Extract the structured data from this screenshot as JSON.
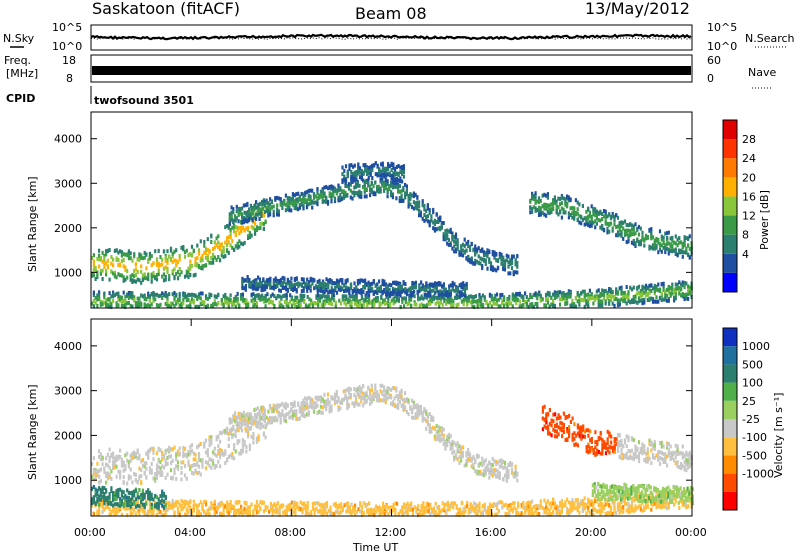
{
  "header": {
    "title": "Saskatoon (fitACF)",
    "beam": "Beam 08",
    "date": "13/May/2012"
  },
  "noise_panel": {
    "left_label": "N.Sky",
    "right_label": "N.Search",
    "ticks": [
      "10^5",
      "10^0"
    ]
  },
  "freq_panel": {
    "left_label_line1": "Freq.",
    "left_label_line2": "[MHz]",
    "left_ticks": [
      "18",
      "8"
    ],
    "right_ticks": [
      "60",
      "0"
    ],
    "right_label": "Nave"
  },
  "cpid": {
    "label": "CPID",
    "value": "twofsound 3501"
  },
  "colors": {
    "power": [
      "#0000ff",
      "#1f4fa0",
      "#2c7f6e",
      "#3a9a48",
      "#8ac63a",
      "#ffb000",
      "#ff7a00",
      "#ff3300",
      "#e00000"
    ],
    "velocity": [
      "#ff0000",
      "#ff4a00",
      "#ff8c00",
      "#ffc040",
      "#c8c8c8",
      "#9ad060",
      "#4fb04a",
      "#2c7f6e",
      "#1f6f9f",
      "#1030c0"
    ],
    "background": "#ffffff"
  },
  "chart_data": [
    {
      "type": "heatmap",
      "name": "power",
      "ylabel": "Slant Range [km]",
      "yticks": [
        "4000",
        "3000",
        "2000",
        "1000"
      ],
      "ylim": [
        200,
        4600
      ],
      "xlim": [
        "00:00",
        "24:00"
      ],
      "colorbar": {
        "label": "Power [dB]",
        "ticks": [
          "28",
          "24",
          "20",
          "16",
          "12",
          "8",
          "4"
        ],
        "range": [
          0,
          32
        ]
      },
      "bands": [
        {
          "t": [
            0,
            2,
            4,
            5,
            6,
            7
          ],
          "r": [
            1250,
            1150,
            1300,
            1600,
            2000,
            2400
          ],
          "w": 350,
          "c": 22
        },
        {
          "t": [
            5.5,
            8,
            10,
            11.5,
            12.5
          ],
          "r": [
            2300,
            2600,
            2850,
            3000,
            2800
          ],
          "w": 200,
          "c": 12
        },
        {
          "t": [
            12.5,
            13.5,
            14.5,
            15.5,
            17
          ],
          "r": [
            2800,
            2300,
            1700,
            1350,
            1200
          ],
          "w": 220,
          "c": 10
        },
        {
          "t": [
            17.5,
            19,
            20.5,
            22,
            24
          ],
          "r": [
            2600,
            2500,
            2200,
            1800,
            1600
          ],
          "w": 250,
          "c": 14
        },
        {
          "t": [
            0,
            4,
            8,
            12,
            16,
            20,
            24
          ],
          "r": [
            400,
            380,
            350,
            330,
            350,
            450,
            650
          ],
          "w": 200,
          "c": 16
        },
        {
          "t": [
            6,
            9,
            12,
            15
          ],
          "r": [
            800,
            750,
            700,
            650
          ],
          "w": 150,
          "c": 8
        },
        {
          "t": [
            10,
            11.5,
            12.5
          ],
          "r": [
            3250,
            3350,
            3250
          ],
          "w": 180,
          "c": 8
        }
      ]
    },
    {
      "type": "heatmap",
      "name": "velocity",
      "ylabel": "Slant Range [km]",
      "yticks": [
        "4000",
        "3000",
        "2000",
        "1000"
      ],
      "ylim": [
        200,
        4600
      ],
      "xlim": [
        "00:00",
        "24:00"
      ],
      "xticks": [
        "00:00",
        "04:00",
        "08:00",
        "12:00",
        "16:00",
        "20:00",
        "00:00"
      ],
      "xlabel": "Time UT",
      "colorbar": {
        "label": "Velocity [m s⁻¹]",
        "ticks": [
          "1000",
          "500",
          "100",
          "25",
          "-25",
          "-100",
          "-500",
          "-1000"
        ]
      },
      "bands": [
        {
          "t": [
            0,
            2,
            4,
            5,
            6,
            7
          ],
          "r": [
            1350,
            1350,
            1450,
            1700,
            2000,
            2400
          ],
          "w": 380,
          "c": 4
        },
        {
          "t": [
            5.5,
            8,
            10,
            11.5,
            12.5
          ],
          "r": [
            2300,
            2600,
            2850,
            3000,
            2800
          ],
          "w": 220,
          "c": 4
        },
        {
          "t": [
            12.5,
            13.5,
            14.5,
            15.5,
            17
          ],
          "r": [
            2800,
            2300,
            1700,
            1350,
            1200
          ],
          "w": 220,
          "c": 4
        },
        {
          "t": [
            18,
            19,
            20,
            21
          ],
          "r": [
            2400,
            2200,
            1900,
            1800
          ],
          "w": 300,
          "c": 1
        },
        {
          "t": [
            21,
            22,
            24
          ],
          "r": [
            1800,
            1700,
            1500
          ],
          "w": 260,
          "c": 4
        },
        {
          "t": [
            0,
            4,
            8,
            12,
            16,
            20,
            24
          ],
          "r": [
            400,
            380,
            350,
            330,
            350,
            450,
            650
          ],
          "w": 200,
          "c": 3
        },
        {
          "t": [
            20,
            22,
            24
          ],
          "r": [
            800,
            750,
            700
          ],
          "w": 180,
          "c": 5
        },
        {
          "t": [
            0,
            1.5,
            3
          ],
          "r": [
            700,
            650,
            600
          ],
          "w": 200,
          "c": 7
        }
      ]
    }
  ]
}
